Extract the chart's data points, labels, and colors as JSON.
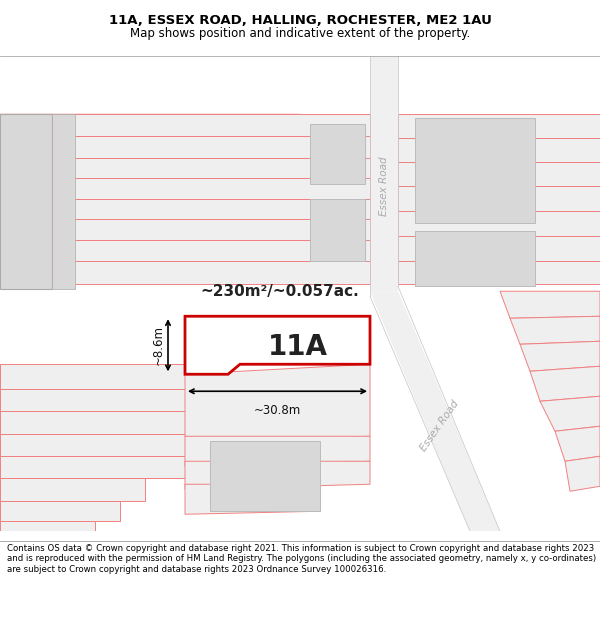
{
  "title": "11A, ESSEX ROAD, HALLING, ROCHESTER, ME2 1AU",
  "subtitle": "Map shows position and indicative extent of the property.",
  "footer": "Contains OS data © Crown copyright and database right 2021. This information is subject to Crown copyright and database rights 2023 and is reproduced with the permission of HM Land Registry. The polygons (including the associated geometry, namely x, y co-ordinates) are subject to Crown copyright and database rights 2023 Ordnance Survey 100026316.",
  "area_label": "~230m²/~0.057ac.",
  "width_label": "~30.8m",
  "height_label": "~8.6m",
  "plot_label": "11A",
  "pink": "#f08080",
  "gray_fc": "#efefef",
  "dark_gray_fc": "#d8d8d8",
  "plot_red": "#cc0000",
  "plot_fill": "#ffffff",
  "road_fc": "#e8e8e8",
  "title_fontsize": 9.5,
  "subtitle_fontsize": 8.5,
  "footer_fontsize": 6.2
}
